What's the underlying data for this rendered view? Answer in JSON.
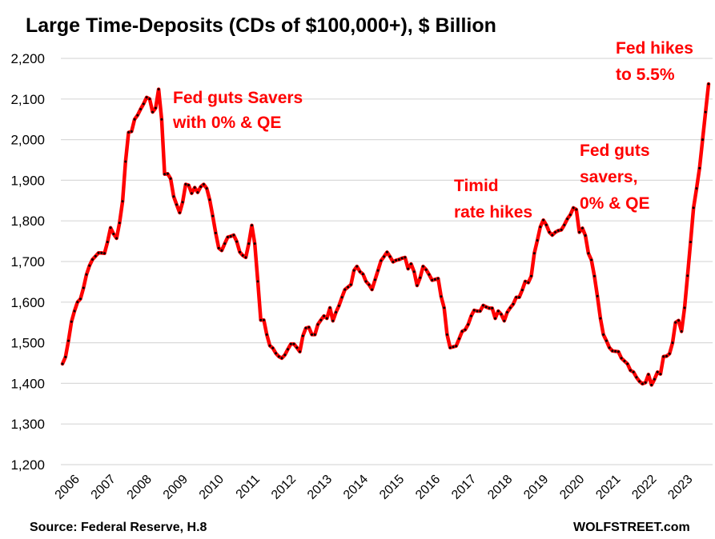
{
  "chart_data": {
    "type": "line",
    "title": "Large Time-Deposits (CDs of $100,000+), $ Billion",
    "xlabel": "",
    "ylabel": "",
    "ylim": [
      1200,
      2200
    ],
    "grid": true,
    "legend": "none",
    "x_start": "2006-01",
    "x_end": "2023-12",
    "frequency": "monthly",
    "y_ticks": [
      1200,
      1300,
      1400,
      1500,
      1600,
      1700,
      1800,
      1900,
      2000,
      2100,
      2200
    ],
    "y_tick_labels": [
      "1,200",
      "1,300",
      "1,400",
      "1,500",
      "1,600",
      "1,700",
      "1,800",
      "1,900",
      "2,000",
      "2,100",
      "2,200"
    ],
    "x_tick_labels": [
      "2006",
      "2007",
      "2008",
      "2009",
      "2010",
      "2011",
      "2012",
      "2013",
      "2014",
      "2015",
      "2016",
      "2017",
      "2018",
      "2019",
      "2020",
      "2021",
      "2022",
      "2023"
    ],
    "series": [
      {
        "name": "Large Time-Deposits",
        "color": "#ff0000",
        "marker_color": "#000000",
        "values": [
          1448,
          1465,
          1505,
          1552,
          1578,
          1600,
          1608,
          1635,
          1668,
          1690,
          1705,
          1713,
          1721,
          1721,
          1720,
          1748,
          1783,
          1768,
          1757,
          1795,
          1848,
          1946,
          2018,
          2020,
          2050,
          2060,
          2075,
          2088,
          2104,
          2100,
          2068,
          2078,
          2124,
          2050,
          1915,
          1916,
          1904,
          1860,
          1840,
          1820,
          1846,
          1890,
          1888,
          1868,
          1882,
          1870,
          1884,
          1890,
          1880,
          1852,
          1812,
          1770,
          1733,
          1727,
          1744,
          1760,
          1762,
          1765,
          1749,
          1723,
          1715,
          1710,
          1744,
          1789,
          1744,
          1651,
          1556,
          1556,
          1520,
          1493,
          1487,
          1474,
          1466,
          1462,
          1470,
          1484,
          1497,
          1497,
          1488,
          1478,
          1517,
          1536,
          1538,
          1520,
          1520,
          1545,
          1556,
          1566,
          1560,
          1586,
          1554,
          1575,
          1591,
          1612,
          1631,
          1637,
          1643,
          1678,
          1688,
          1675,
          1669,
          1651,
          1643,
          1631,
          1655,
          1678,
          1702,
          1712,
          1723,
          1712,
          1699,
          1703,
          1705,
          1708,
          1710,
          1682,
          1694,
          1675,
          1641,
          1660,
          1688,
          1680,
          1668,
          1654,
          1656,
          1658,
          1614,
          1586,
          1520,
          1488,
          1490,
          1492,
          1510,
          1528,
          1532,
          1545,
          1566,
          1580,
          1578,
          1578,
          1592,
          1588,
          1585,
          1585,
          1560,
          1578,
          1570,
          1554,
          1575,
          1586,
          1595,
          1612,
          1612,
          1630,
          1651,
          1648,
          1664,
          1720,
          1752,
          1785,
          1802,
          1790,
          1772,
          1765,
          1772,
          1776,
          1778,
          1790,
          1805,
          1815,
          1832,
          1828,
          1772,
          1782,
          1764,
          1720,
          1704,
          1664,
          1615,
          1560,
          1520,
          1505,
          1488,
          1480,
          1479,
          1478,
          1462,
          1455,
          1448,
          1432,
          1428,
          1415,
          1405,
          1399,
          1402,
          1422,
          1396,
          1410,
          1428,
          1423,
          1466,
          1467,
          1473,
          1500,
          1550,
          1555,
          1528,
          1586,
          1665,
          1748,
          1832,
          1880,
          1930,
          2000,
          2068,
          2137
        ]
      }
    ],
    "annotations": [
      {
        "text_lines": [
          "Fed guts Savers",
          "with 0% & QE"
        ],
        "near": "2009"
      },
      {
        "text_lines": [
          "Timid",
          "rate hikes"
        ],
        "near": "2017-2018"
      },
      {
        "text_lines": [
          "Fed guts",
          "savers,",
          "0% & QE"
        ],
        "near": "2020"
      },
      {
        "text_lines": [
          "Fed hikes",
          "to 5.5%"
        ],
        "near": "2023"
      }
    ],
    "source": "Source:  Federal Reserve, H.8",
    "watermark": "WOLFSTREET.com"
  }
}
